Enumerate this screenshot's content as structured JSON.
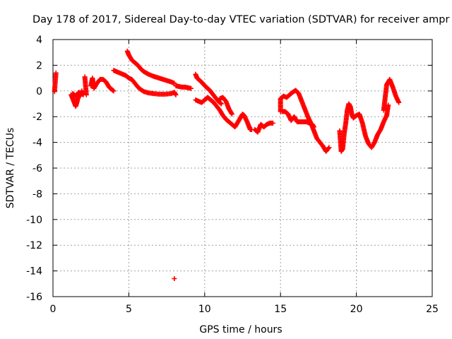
{
  "chart_data": {
    "type": "scatter",
    "title": "Day 178 of 2017, Sidereal Day-to-day VTEC variation (SDTVAR) for receiver ampr",
    "xlabel": "GPS time / hours",
    "ylabel": "SDTVAR / TECUs",
    "xlim": [
      0,
      25
    ],
    "ylim": [
      -16,
      4
    ],
    "xticks": [
      0,
      5,
      10,
      15,
      20,
      25
    ],
    "yticks": [
      4,
      2,
      0,
      -2,
      -4,
      -6,
      -8,
      -10,
      -12,
      -14,
      -16
    ],
    "grid": true,
    "marker": "plus",
    "color": "#ff0000",
    "series": [
      {
        "name": "SDTVAR",
        "segments": [
          [
            [
              0.1,
              -0.05
            ],
            [
              0.2,
              1.4
            ]
          ],
          [
            [
              1.2,
              -0.3
            ],
            [
              1.3,
              -0.6
            ],
            [
              1.4,
              -0.9
            ],
            [
              1.5,
              -1.2
            ],
            [
              1.6,
              -0.8
            ],
            [
              1.7,
              -0.2
            ],
            [
              1.8,
              -0.4
            ],
            [
              1.9,
              0.0
            ],
            [
              2.0,
              -0.3
            ]
          ],
          [
            [
              1.3,
              -0.2
            ],
            [
              1.5,
              -0.4
            ],
            [
              1.7,
              -0.1
            ],
            [
              1.9,
              -0.2
            ]
          ],
          [
            [
              2.1,
              1.1
            ],
            [
              2.2,
              -0.3
            ]
          ],
          [
            [
              2.5,
              0.4
            ],
            [
              2.6,
              1.0
            ],
            [
              2.7,
              0.2
            ],
            [
              2.9,
              0.6
            ],
            [
              3.1,
              0.9
            ],
            [
              3.3,
              0.9
            ],
            [
              3.5,
              0.7
            ],
            [
              3.7,
              0.3
            ],
            [
              3.9,
              0.1
            ],
            [
              4.0,
              0.0
            ]
          ],
          [
            [
              4.0,
              1.6
            ],
            [
              4.2,
              1.5
            ],
            [
              4.4,
              1.4
            ],
            [
              4.6,
              1.3
            ],
            [
              4.8,
              1.2
            ],
            [
              5.0,
              1.0
            ],
            [
              5.2,
              0.9
            ],
            [
              5.4,
              0.6
            ],
            [
              5.6,
              0.3
            ],
            [
              5.8,
              0.1
            ],
            [
              6.0,
              -0.05
            ],
            [
              6.3,
              -0.15
            ],
            [
              6.6,
              -0.2
            ],
            [
              7.0,
              -0.25
            ],
            [
              7.4,
              -0.25
            ],
            [
              7.8,
              -0.2
            ],
            [
              8.0,
              -0.1
            ],
            [
              8.1,
              -0.3
            ]
          ],
          [
            [
              4.9,
              3.1
            ],
            [
              5.0,
              2.8
            ],
            [
              5.2,
              2.4
            ],
            [
              5.4,
              2.2
            ],
            [
              5.6,
              2.0
            ],
            [
              5.8,
              1.7
            ],
            [
              6.0,
              1.5
            ],
            [
              6.3,
              1.3
            ],
            [
              6.6,
              1.15
            ],
            [
              7.0,
              1.0
            ],
            [
              7.4,
              0.85
            ],
            [
              7.8,
              0.7
            ],
            [
              8.0,
              0.6
            ]
          ],
          [
            [
              8.1,
              0.4
            ],
            [
              8.3,
              0.35
            ],
            [
              8.5,
              0.3
            ],
            [
              8.7,
              0.3
            ],
            [
              8.9,
              0.25
            ],
            [
              9.1,
              0.2
            ]
          ],
          [
            [
              8.0,
              -14.6
            ]
          ],
          [
            [
              9.4,
              1.3
            ],
            [
              9.5,
              1.0
            ],
            [
              9.7,
              0.8
            ],
            [
              9.9,
              0.55
            ],
            [
              10.1,
              0.3
            ],
            [
              10.3,
              0.1
            ],
            [
              10.5,
              -0.2
            ],
            [
              10.7,
              -0.5
            ],
            [
              10.9,
              -0.8
            ],
            [
              11.1,
              -1.0
            ]
          ],
          [
            [
              9.4,
              -0.7
            ],
            [
              9.6,
              -0.8
            ],
            [
              9.8,
              -0.9
            ],
            [
              10.0,
              -0.7
            ],
            [
              10.2,
              -0.5
            ],
            [
              10.4,
              -0.7
            ],
            [
              10.6,
              -0.9
            ],
            [
              10.8,
              -1.2
            ],
            [
              11.0,
              -1.5
            ],
            [
              11.2,
              -1.9
            ],
            [
              11.4,
              -2.2
            ],
            [
              11.6,
              -2.4
            ],
            [
              11.8,
              -2.6
            ],
            [
              12.0,
              -2.8
            ],
            [
              12.2,
              -2.4
            ],
            [
              12.4,
              -2.0
            ],
            [
              12.5,
              -1.8
            ],
            [
              12.6,
              -1.9
            ],
            [
              12.8,
              -2.4
            ],
            [
              13.0,
              -3.0
            ],
            [
              13.1,
              -3.0
            ]
          ],
          [
            [
              11.0,
              -0.6
            ],
            [
              11.2,
              -0.5
            ],
            [
              11.4,
              -0.8
            ],
            [
              11.6,
              -1.4
            ],
            [
              11.8,
              -1.8
            ]
          ],
          [
            [
              13.3,
              -3.0
            ],
            [
              13.5,
              -3.2
            ],
            [
              13.7,
              -2.6
            ],
            [
              13.9,
              -2.8
            ],
            [
              14.1,
              -2.6
            ],
            [
              14.3,
              -2.5
            ],
            [
              14.5,
              -2.5
            ]
          ],
          [
            [
              15.0,
              -1.6
            ],
            [
              15.0,
              -0.6
            ],
            [
              15.2,
              -0.4
            ],
            [
              15.4,
              -0.5
            ],
            [
              15.6,
              -0.3
            ],
            [
              15.8,
              -0.1
            ],
            [
              16.0,
              0.05
            ],
            [
              16.2,
              -0.2
            ],
            [
              16.4,
              -0.8
            ],
            [
              16.6,
              -1.4
            ],
            [
              16.8,
              -2.0
            ],
            [
              17.0,
              -2.5
            ],
            [
              17.2,
              -3.1
            ],
            [
              17.4,
              -3.7
            ],
            [
              17.6,
              -4.0
            ],
            [
              17.8,
              -4.3
            ],
            [
              18.0,
              -4.7
            ],
            [
              18.2,
              -4.4
            ]
          ],
          [
            [
              15.1,
              -1.6
            ],
            [
              15.3,
              -1.6
            ],
            [
              15.5,
              -1.8
            ],
            [
              15.7,
              -2.3
            ],
            [
              15.9,
              -2.0
            ],
            [
              16.1,
              -2.4
            ],
            [
              16.3,
              -2.4
            ],
            [
              16.5,
              -2.4
            ],
            [
              16.7,
              -2.4
            ],
            [
              16.9,
              -2.5
            ],
            [
              17.1,
              -2.6
            ],
            [
              17.2,
              -2.8
            ]
          ],
          [
            [
              18.9,
              -3.1
            ],
            [
              19.0,
              -4.7
            ],
            [
              19.1,
              -4.5
            ],
            [
              19.2,
              -3.3
            ],
            [
              19.3,
              -2.5
            ],
            [
              19.4,
              -1.5
            ],
            [
              19.5,
              -1.0
            ],
            [
              19.6,
              -1.2
            ],
            [
              19.7,
              -1.8
            ],
            [
              19.8,
              -2.1
            ],
            [
              19.9,
              -2.0
            ],
            [
              20.0,
              -1.9
            ],
            [
              20.2,
              -1.8
            ],
            [
              20.4,
              -2.5
            ],
            [
              20.6,
              -3.5
            ],
            [
              20.8,
              -4.1
            ],
            [
              21.0,
              -4.4
            ],
            [
              21.2,
              -4.0
            ],
            [
              21.4,
              -3.4
            ],
            [
              21.6,
              -3.0
            ],
            [
              21.8,
              -2.4
            ],
            [
              22.0,
              -1.9
            ],
            [
              22.1,
              -1.1
            ]
          ],
          [
            [
              21.8,
              -1.5
            ],
            [
              21.9,
              -0.5
            ],
            [
              22.0,
              0.5
            ],
            [
              22.2,
              0.9
            ],
            [
              22.4,
              0.3
            ],
            [
              22.6,
              -0.4
            ],
            [
              22.8,
              -0.9
            ]
          ]
        ]
      }
    ]
  }
}
